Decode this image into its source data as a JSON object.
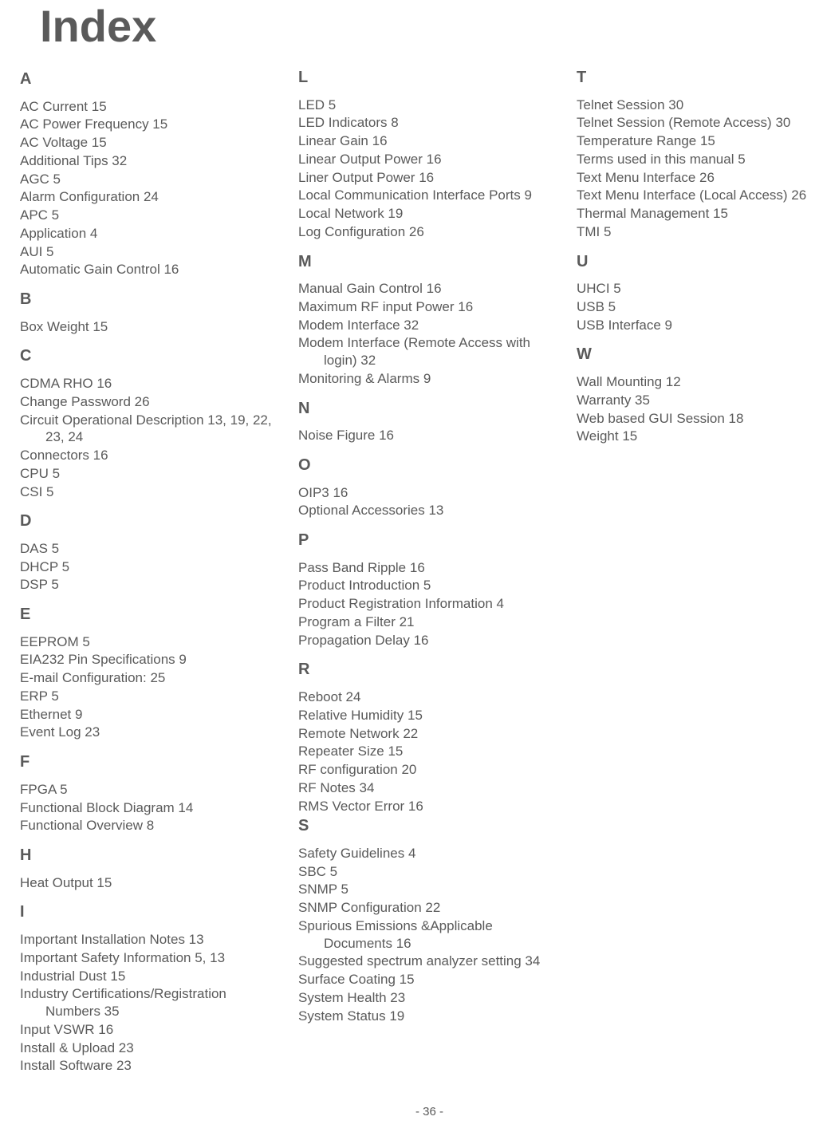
{
  "title": "Index",
  "footer": "- 36 -",
  "sections": [
    {
      "letter": "A",
      "first": true,
      "entries": [
        {
          "t": "AC Current  15"
        },
        {
          "t": "AC Power Frequency  15"
        },
        {
          "t": "AC Voltage  15"
        },
        {
          "t": "Additional Tips  32"
        },
        {
          "t": "AGC  5"
        },
        {
          "t": "Alarm Configuration  24"
        },
        {
          "t": "APC  5"
        },
        {
          "t": "Application  4"
        },
        {
          "t": "AUI  5"
        },
        {
          "t": "Automatic Gain Control  16"
        }
      ]
    },
    {
      "letter": "B",
      "entries": [
        {
          "t": "Box Weight  15"
        }
      ]
    },
    {
      "letter": "C",
      "entries": [
        {
          "t": "CDMA RHO  16"
        },
        {
          "t": "Change Password  26"
        },
        {
          "t": "Circuit Operational Description  13, 19, 22, 23, 24"
        },
        {
          "t": "Connectors  16"
        },
        {
          "t": "CPU  5"
        },
        {
          "t": "CSI  5"
        }
      ]
    },
    {
      "letter": "D",
      "entries": [
        {
          "t": "DAS  5"
        },
        {
          "t": "DHCP  5"
        },
        {
          "t": "DSP  5"
        }
      ]
    },
    {
      "letter": "E",
      "entries": [
        {
          "t": "EEPROM  5"
        },
        {
          "t": "EIA232 Pin Specifications  9"
        },
        {
          "t": "E-mail Configuration:  25"
        },
        {
          "t": "ERP  5"
        },
        {
          "t": "Ethernet  9"
        },
        {
          "t": "Event Log  23"
        }
      ]
    },
    {
      "letter": "F",
      "entries": [
        {
          "t": "FPGA  5"
        },
        {
          "t": "Functional Block Diagram  14"
        },
        {
          "t": "Functional Overview  8"
        }
      ]
    },
    {
      "letter": "H",
      "entries": [
        {
          "t": "Heat Output  15"
        }
      ]
    },
    {
      "letter": "I",
      "wrap": true,
      "entries": [
        {
          "t": "Important Installation Notes  13"
        },
        {
          "t": "Important Safety Information  5, 13"
        },
        {
          "t": "Industrial Dust  15"
        },
        {
          "t": "Industry Certifications/Registration Numbers  35"
        },
        {
          "t": "Input VSWR  16"
        },
        {
          "t": "Install & Upload  23"
        },
        {
          "t": "Install Software  23"
        }
      ]
    },
    {
      "letter": "L",
      "entries": [
        {
          "t": "LED  5"
        },
        {
          "t": "LED Indicators  8"
        },
        {
          "t": "Linear Gain  16"
        },
        {
          "t": "Linear Output Power  16"
        },
        {
          "t": "Liner Output Power  16"
        },
        {
          "t": "Local Communication Interface Ports  9"
        },
        {
          "t": "Local Network  19"
        },
        {
          "t": "Log Configuration  26"
        }
      ]
    },
    {
      "letter": "M",
      "entries": [
        {
          "t": "Manual Gain Control  16"
        },
        {
          "t": "Maximum RF input Power  16"
        },
        {
          "t": "Modem Interface  32"
        },
        {
          "t": "Modem Interface (Remote Access with login)  32"
        },
        {
          "t": "Monitoring & Alarms  9"
        }
      ]
    },
    {
      "letter": "N",
      "entries": [
        {
          "t": "Noise Figure  16"
        }
      ]
    },
    {
      "letter": "O",
      "entries": [
        {
          "t": "OIP3  16"
        },
        {
          "t": "Optional Accessories  13"
        }
      ]
    },
    {
      "letter": "P",
      "entries": [
        {
          "t": "Pass Band Ripple  16"
        },
        {
          "t": "Product Introduction  5"
        },
        {
          "t": "Product Registration Information  4"
        },
        {
          "t": "Program a Filter  21"
        },
        {
          "t": "Propagation Delay  16"
        }
      ]
    },
    {
      "letter": "R",
      "entries": [
        {
          "t": "Reboot  24"
        },
        {
          "t": "Relative Humidity  15"
        },
        {
          "t": "Remote Network  22"
        },
        {
          "t": "Repeater Size  15"
        },
        {
          "t": "RF configuration  20"
        },
        {
          "t": "RF Notes  34"
        },
        {
          "t": "RMS Vector Error  16"
        }
      ]
    },
    {
      "letter": "S",
      "first": true,
      "entries": [
        {
          "t": "Safety Guidelines  4"
        },
        {
          "t": "SBC  5"
        },
        {
          "t": "SNMP  5"
        },
        {
          "t": "SNMP Configuration  22"
        },
        {
          "t": "Spurious Emissions &Applicable Documents  16"
        },
        {
          "t": "Suggested spectrum analyzer setting  34"
        },
        {
          "t": "Surface Coating  15"
        },
        {
          "t": "System Health  23"
        },
        {
          "t": "System Status  19"
        }
      ]
    },
    {
      "letter": "T",
      "entries": [
        {
          "t": "Telnet Session  30"
        },
        {
          "t": "Telnet Session (Remote Access)  30"
        },
        {
          "t": "Temperature Range  15"
        },
        {
          "t": "Terms used in this manual  5"
        },
        {
          "t": "Text Menu Interface  26"
        },
        {
          "t": "Text Menu Interface (Local Access)  26"
        },
        {
          "t": "Thermal Management  15"
        },
        {
          "t": "TMI  5"
        }
      ]
    },
    {
      "letter": "U",
      "entries": [
        {
          "t": "UHCI  5"
        },
        {
          "t": "USB  5"
        },
        {
          "t": "USB Interface  9"
        }
      ]
    },
    {
      "letter": "W",
      "entries": [
        {
          "t": "Wall Mounting  12"
        },
        {
          "t": "Warranty  35"
        },
        {
          "t": "Web based GUI Session  18"
        },
        {
          "t": "Weight  15"
        }
      ]
    }
  ]
}
